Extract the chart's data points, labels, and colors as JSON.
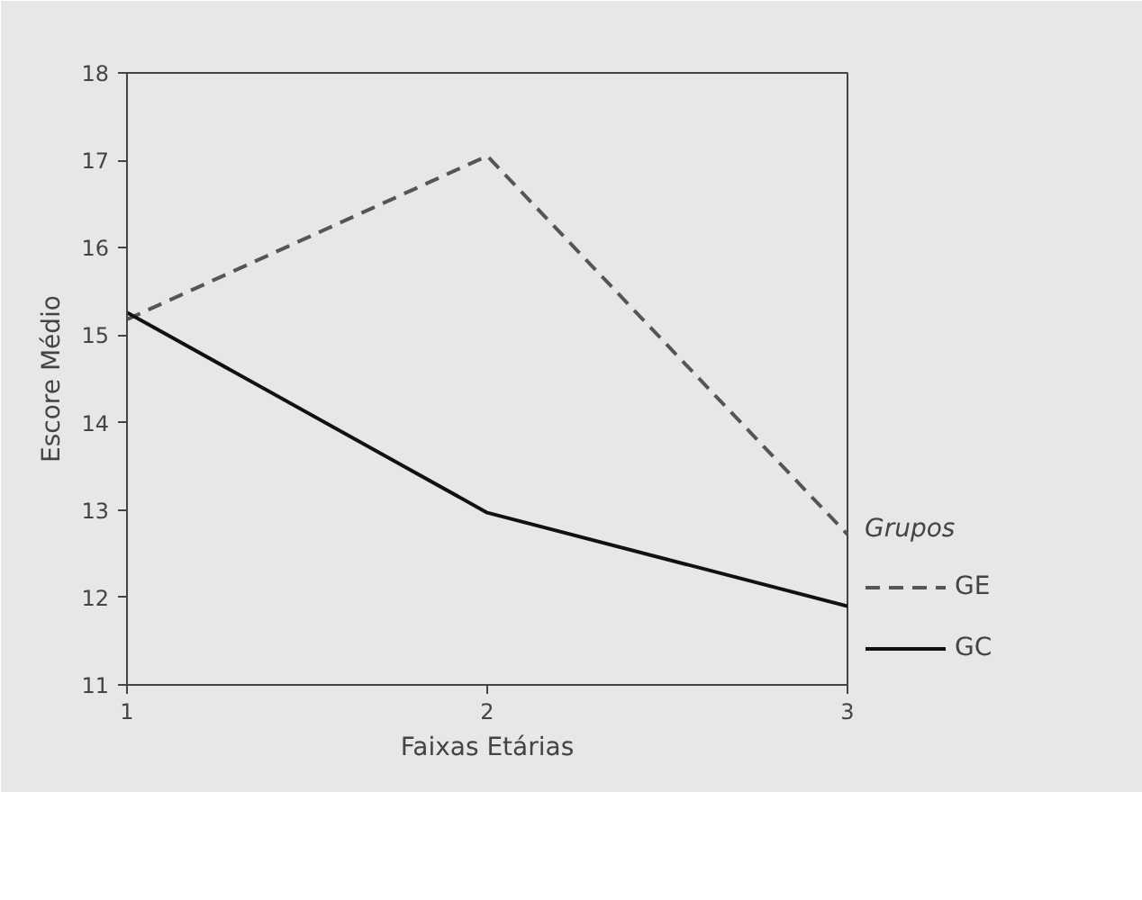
{
  "chart_data": {
    "type": "line",
    "xlabel": "Faixas Etárias",
    "ylabel": "Escore Médio",
    "legend_title": "Grupos",
    "x": [
      1,
      2,
      3
    ],
    "xlim": [
      1,
      3
    ],
    "xticks": [
      1,
      2,
      3
    ],
    "ylim": [
      11,
      18
    ],
    "yticks": [
      11,
      12,
      13,
      14,
      15,
      16,
      17,
      18
    ],
    "series": [
      {
        "name": "GE",
        "color": "#555555",
        "line_style": "dashed",
        "values": [
          15.18,
          17.05,
          12.72
        ]
      },
      {
        "name": "GC",
        "color": "#111111",
        "line_style": "solid",
        "values": [
          15.26,
          12.97,
          11.9
        ]
      }
    ],
    "grid": false,
    "legend": "right",
    "marker": "none"
  }
}
